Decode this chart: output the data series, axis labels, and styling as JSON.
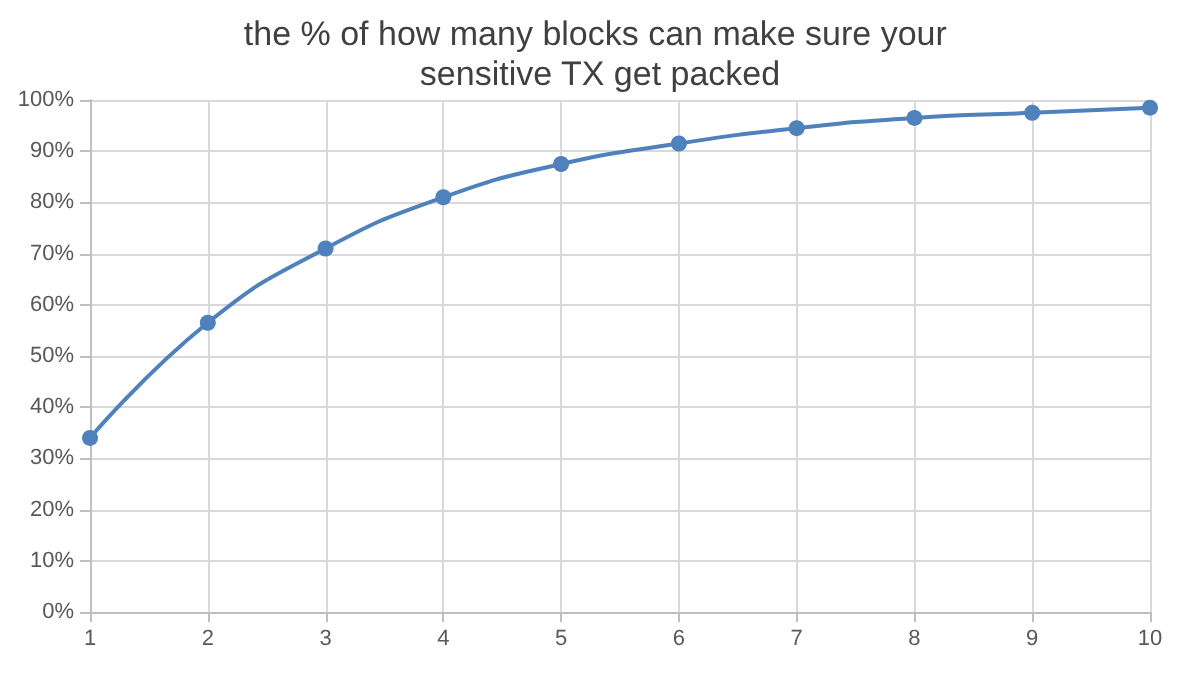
{
  "chart_data": {
    "type": "line",
    "title": "the % of how many blocks can make sure your sensitive TX get packed",
    "x": [
      1,
      2,
      3,
      4,
      5,
      6,
      7,
      8,
      9,
      10
    ],
    "series": [
      {
        "color": "#4f81bd",
        "values": [
          34,
          56.5,
          71,
          81,
          87.5,
          91.5,
          94.5,
          96.5,
          97.5,
          98.5
        ]
      }
    ],
    "xlim": [
      1,
      10
    ],
    "xticks": [
      1,
      2,
      3,
      4,
      5,
      6,
      7,
      8,
      9,
      10
    ],
    "ylim": [
      0,
      100
    ],
    "yticks": [
      {
        "value": 0,
        "label": "0%"
      },
      {
        "value": 10,
        "label": "10%"
      },
      {
        "value": 20,
        "label": "20%"
      },
      {
        "value": 30,
        "label": "30%"
      },
      {
        "value": 40,
        "label": "40%"
      },
      {
        "value": 50,
        "label": "50%"
      },
      {
        "value": 60,
        "label": "60%"
      },
      {
        "value": 70,
        "label": "70%"
      },
      {
        "value": 80,
        "label": "80%"
      },
      {
        "value": 90,
        "label": "90%"
      },
      {
        "value": 100,
        "label": "100%"
      }
    ],
    "grid": true,
    "marker": "circle",
    "line_style": "solid"
  }
}
